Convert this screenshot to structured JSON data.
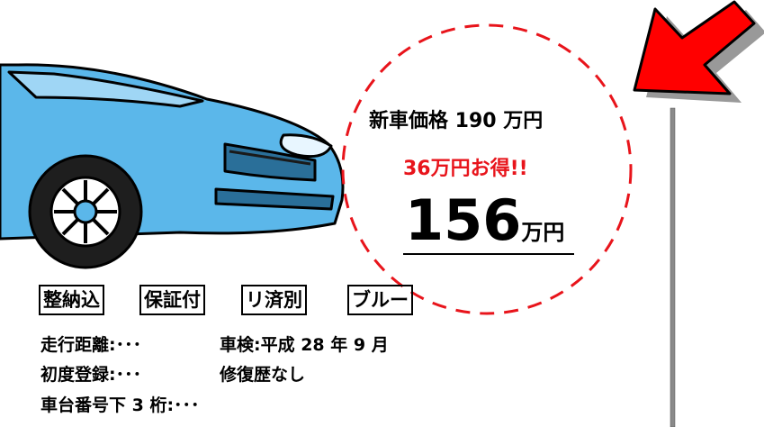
{
  "circle": {
    "list_price": "新車価格 190 万円",
    "discount": "36万円お得!!",
    "price": "156",
    "price_unit": "万円"
  },
  "tags": [
    "整納込",
    "保証付",
    "リ済別",
    "ブルー"
  ],
  "details": [
    [
      "走行距離:･･･",
      "車検:平成 28 年 9 月"
    ],
    [
      "初度登録:･･･",
      "修復歴なし"
    ],
    [
      "車台番号下 3 桁:･･･"
    ]
  ]
}
